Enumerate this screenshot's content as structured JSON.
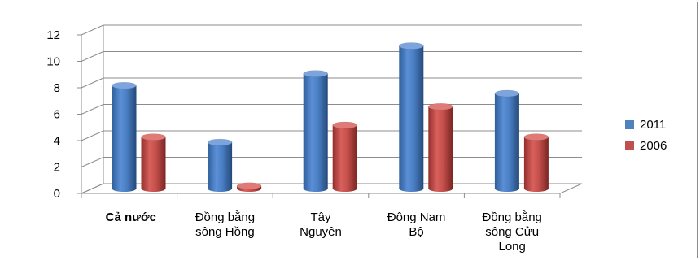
{
  "chart_data": {
    "type": "bar",
    "three_d": true,
    "categories": [
      "Cả nước",
      "Đồng bằng sông Hồng",
      "Tây Nguyên",
      "Đông Nam Bộ",
      "Đồng bằng sông Cửu Long"
    ],
    "category_lines": [
      [
        "Cả nước"
      ],
      [
        "Đồng bằng",
        "sông Hồng"
      ],
      [
        "Tây",
        "Nguyên"
      ],
      [
        "Đông Nam",
        "Bộ"
      ],
      [
        "Đồng bằng",
        "sông Cửu",
        "Long"
      ]
    ],
    "series": [
      {
        "name": "2011",
        "color": "#4f81bd",
        "values": [
          7.8,
          3.5,
          8.7,
          10.8,
          7.2
        ]
      },
      {
        "name": "2006",
        "color": "#c0504d",
        "values": [
          3.9,
          0.2,
          4.8,
          6.2,
          3.9
        ]
      }
    ],
    "yticks": [
      "0",
      "2",
      "4",
      "6",
      "8",
      "10",
      "12"
    ],
    "ylim": [
      0,
      12
    ],
    "grid": true,
    "legend_position": "right"
  }
}
